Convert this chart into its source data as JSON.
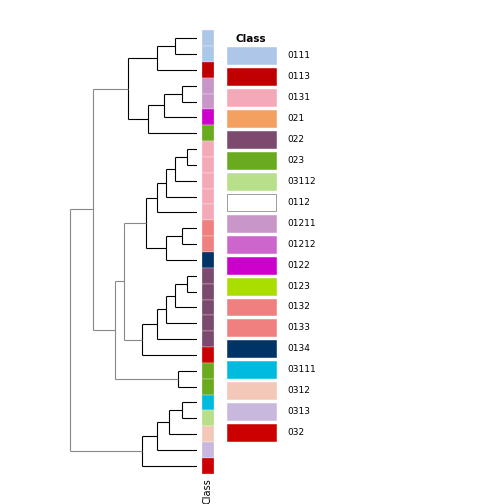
{
  "figsize": [
    5.04,
    5.04
  ],
  "dpi": 100,
  "leaves_colors": [
    "#aec6e8",
    "#aec6e8",
    "#c00000",
    "#c896c8",
    "#c896c8",
    "#cc00cc",
    "#6aaa1e",
    "#f4a9b8",
    "#f4a9b8",
    "#f4a9b8",
    "#f4a9b8",
    "#f4a9b8",
    "#f08080",
    "#f08080",
    "#003366",
    "#7b4a6e",
    "#7b4a6e",
    "#7b4a6e",
    "#7b4a6e",
    "#7b4a6e",
    "#cc0000",
    "#6aaa1e",
    "#6aaa1e",
    "#00bbdd",
    "#b8e08a",
    "#f4c8b8",
    "#c8b8dd",
    "#cc0000"
  ],
  "legend_labels": [
    "0111",
    "0113",
    "0131",
    "021",
    "022",
    "023",
    "03112",
    "0112",
    "01211",
    "01212",
    "0122",
    "0123",
    "0132",
    "0133",
    "0134",
    "03111",
    "0312",
    "0313",
    "032"
  ],
  "legend_colors": [
    "#aec6e8",
    "#c00000",
    "#f4a9b8",
    "#f4a060",
    "#7b4a6e",
    "#6aaa1e",
    "#b8e08a",
    "#ffffff",
    "#c896c8",
    "#cc66cc",
    "#cc00cc",
    "#aadd00",
    "#f08080",
    "#f08080",
    "#003366",
    "#00bbdd",
    "#f4c8b8",
    "#c8b8dd",
    "#cc0000"
  ],
  "dendro_color_black": "black",
  "dendro_color_gray": "#888888"
}
